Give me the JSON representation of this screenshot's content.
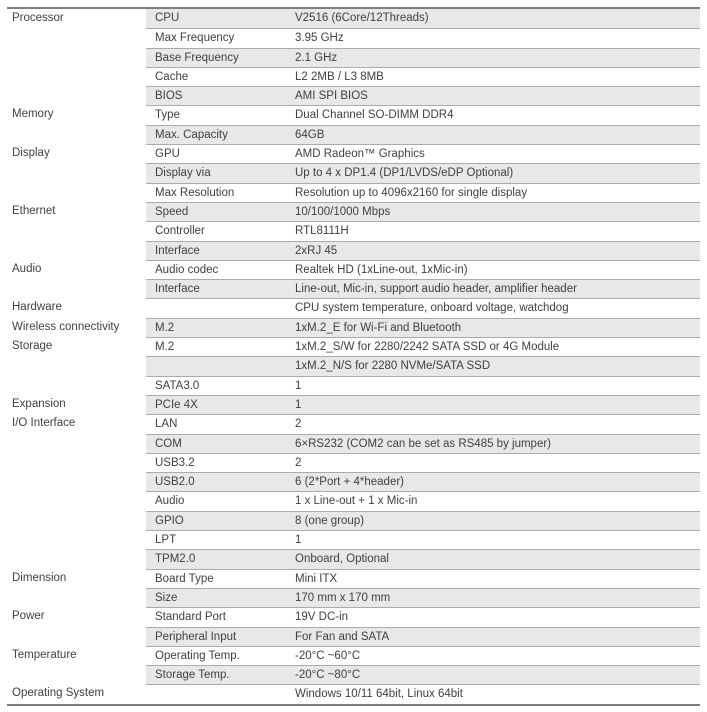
{
  "document": {
    "type": "specification-sheet",
    "shade_color": "#e8e8e8",
    "line_color": "#ababab",
    "border_color": "#7d7d7d",
    "text_color": "#404040"
  },
  "table": {
    "columns": [
      "category",
      "property",
      "value"
    ],
    "rows": [
      {
        "category": "Processor",
        "property": "CPU",
        "value": "V2516 (6Core/12Threads)"
      },
      {
        "category": "",
        "property": "Max Frequency",
        "value": "3.95 GHz"
      },
      {
        "category": "",
        "property": "Base Frequency",
        "value": "2.1 GHz"
      },
      {
        "category": "",
        "property": "Cache",
        "value": "L2 2MB / L3 8MB"
      },
      {
        "category": "",
        "property": "BIOS",
        "value": "AMI SPI BIOS"
      },
      {
        "category": "Memory",
        "property": "Type",
        "value": "Dual Channel SO-DIMM DDR4"
      },
      {
        "category": "",
        "property": "Max. Capacity",
        "value": "64GB"
      },
      {
        "category": "Display",
        "property": "GPU",
        "value": "AMD Radeon™ Graphics"
      },
      {
        "category": "",
        "property": "Display via",
        "value": "Up to 4 x DP1.4 (DP1/LVDS/eDP Optional)"
      },
      {
        "category": "",
        "property": "Max Resolution",
        "value": "Resolution up to 4096x2160 for single display"
      },
      {
        "category": "Ethernet",
        "property": "Speed",
        "value": "10/100/1000 Mbps"
      },
      {
        "category": "",
        "property": "Controller",
        "value": "RTL8111H"
      },
      {
        "category": "",
        "property": "Interface",
        "value": "2xRJ 45"
      },
      {
        "category": "Audio",
        "property": "Audio codec",
        "value": "Realtek HD (1xLine-out, 1xMic-in)"
      },
      {
        "category": "",
        "property": "Interface",
        "value": "Line-out, Mic-in, support audio header, amplifier header"
      },
      {
        "category": "Hardware",
        "property": "",
        "value": "CPU system temperature, onboard voltage, watchdog"
      },
      {
        "category": "Wireless connectivity",
        "property": "M.2",
        "value": "1xM.2_E for Wi-Fi and Bluetooth"
      },
      {
        "category": "Storage",
        "property": "M.2",
        "value": "1xM.2_S/W for 2280/2242 SATA SSD or 4G Module"
      },
      {
        "category": "",
        "property": "",
        "value": "1xM.2_N/S for 2280 NVMe/SATA SSD"
      },
      {
        "category": "",
        "property": "SATA3.0",
        "value": "1"
      },
      {
        "category": "Expansion",
        "property": "PCIe 4X",
        "value": "1"
      },
      {
        "category": "I/O Interface",
        "property": "LAN",
        "value": "2"
      },
      {
        "category": "",
        "property": "COM",
        "value": "6×RS232 (COM2 can be set as RS485 by jumper)"
      },
      {
        "category": "",
        "property": "USB3.2",
        "value": "2"
      },
      {
        "category": "",
        "property": "USB2.0",
        "value": "6 (2*Port + 4*header)"
      },
      {
        "category": "",
        "property": "Audio",
        "value": "1 x Line-out + 1 x Mic-in"
      },
      {
        "category": "",
        "property": "GPIO",
        "value": "8 (one group)"
      },
      {
        "category": "",
        "property": "LPT",
        "value": "1"
      },
      {
        "category": "",
        "property": "TPM2.0",
        "value": "Onboard, Optional"
      },
      {
        "category": "Dimension",
        "property": "Board Type",
        "value": "Mini ITX"
      },
      {
        "category": "",
        "property": "Size",
        "value": "170 mm x 170 mm"
      },
      {
        "category": "Power",
        "property": "Standard Port",
        "value": "19V DC-in"
      },
      {
        "category": "",
        "property": "Peripheral Input",
        "value": "For Fan and SATA"
      },
      {
        "category": "Temperature",
        "property": "Operating Temp.",
        "value": "-20°C ~60°C"
      },
      {
        "category": "",
        "property": "Storage Temp.",
        "value": "-20°C ~80°C"
      },
      {
        "category": "Operating System",
        "property": "",
        "value": "Windows 10/11 64bit, Linux 64bit"
      }
    ]
  }
}
